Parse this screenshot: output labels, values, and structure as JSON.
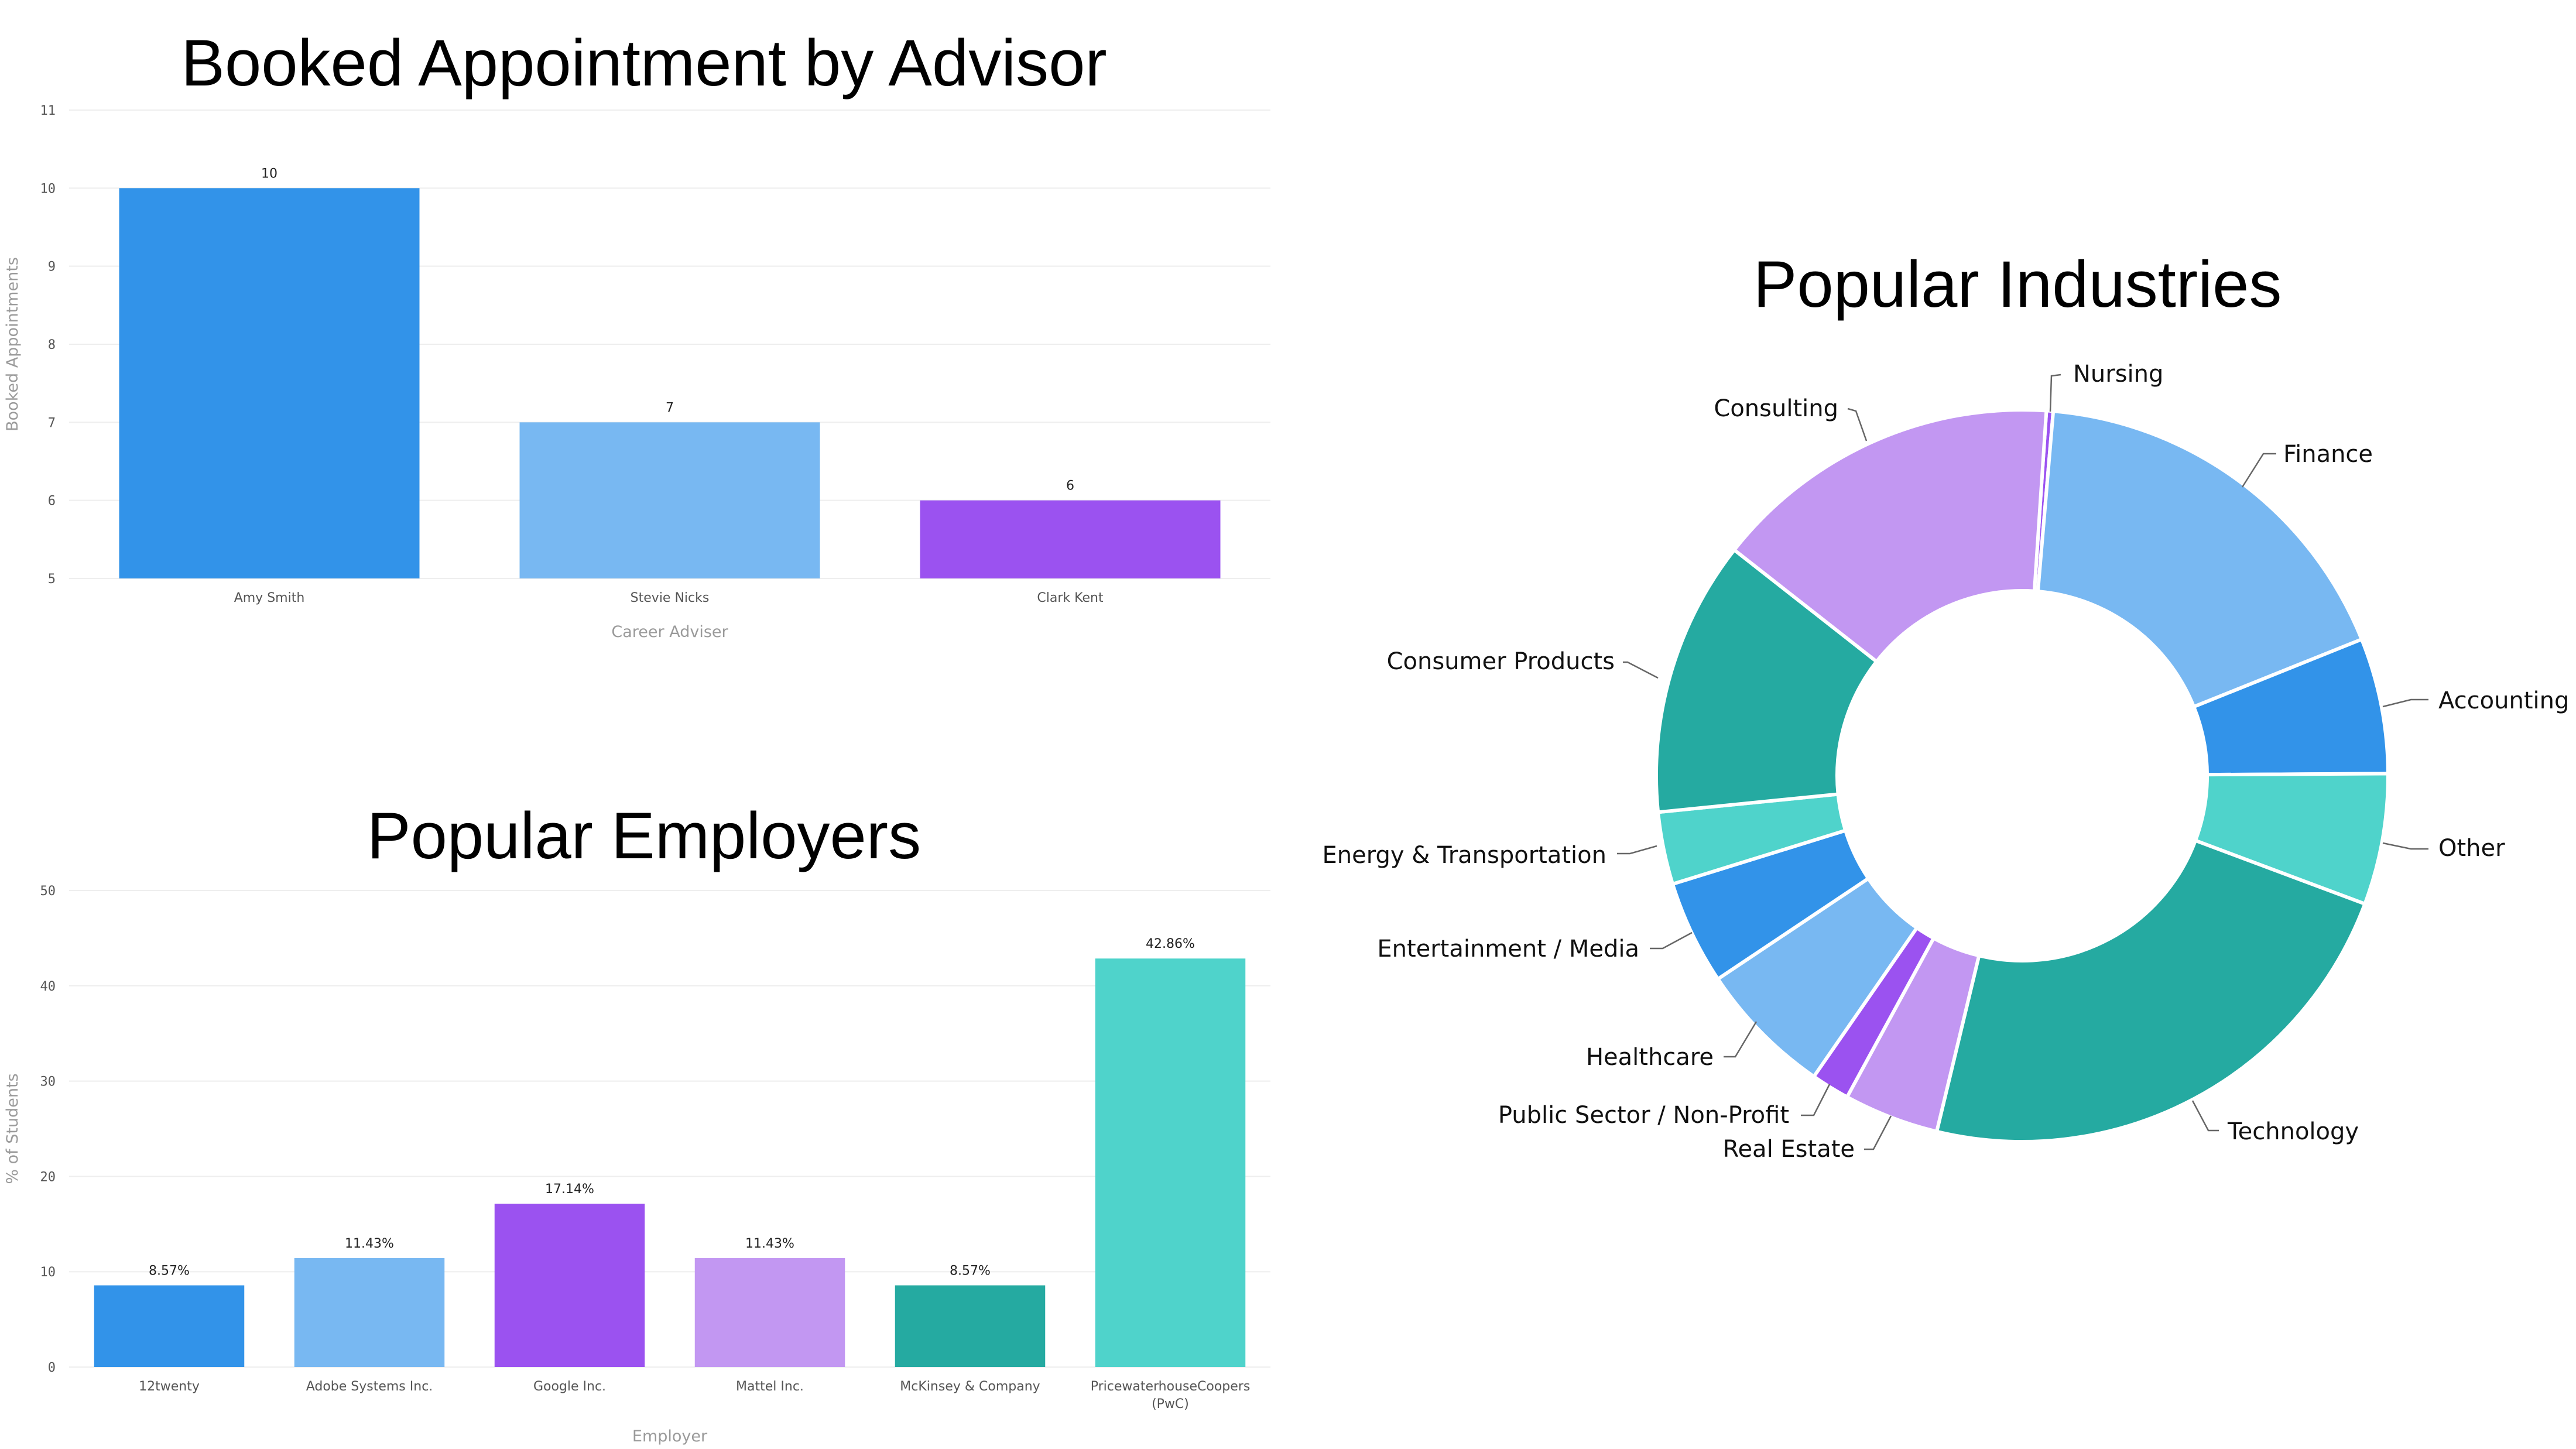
{
  "chart_data": [
    {
      "id": "advisor",
      "type": "bar",
      "title": "Booked Appointment by Advisor",
      "xlabel": "Career Adviser",
      "ylabel": "Booked Appointments",
      "ylim": [
        5,
        11
      ],
      "yticks": [
        5,
        6,
        7,
        8,
        9,
        10,
        11
      ],
      "grid": true,
      "categories": [
        "Amy Smith",
        "Stevie Nicks",
        "Clark Kent"
      ],
      "values": [
        10,
        7,
        6
      ],
      "data_labels": [
        "10",
        "7",
        "6"
      ],
      "colors": [
        "#3293E9",
        "#78B8F2",
        "#9B52F0"
      ]
    },
    {
      "id": "employers",
      "type": "bar",
      "title": "Popular Employers",
      "xlabel": "Employer",
      "ylabel": "% of Students",
      "ylim": [
        0,
        50
      ],
      "yticks": [
        0,
        10,
        20,
        30,
        40,
        50
      ],
      "grid": true,
      "categories": [
        "12twenty",
        "Adobe Systems Inc.",
        "Google Inc.",
        "Mattel Inc.",
        "McKinsey & Company",
        "PricewaterhouseCoopers (PwC)"
      ],
      "category_lines": [
        [
          "12twenty"
        ],
        [
          "Adobe Systems Inc."
        ],
        [
          "Google Inc."
        ],
        [
          "Mattel Inc."
        ],
        [
          "McKinsey & Company"
        ],
        [
          "PricewaterhouseCoopers",
          "(PwC)"
        ]
      ],
      "values": [
        8.57,
        11.43,
        17.14,
        11.43,
        8.57,
        42.86
      ],
      "data_labels": [
        "8.57%",
        "11.43%",
        "17.14%",
        "11.43%",
        "8.57%",
        "42.86%"
      ],
      "colors": [
        "#3293E9",
        "#78B8F2",
        "#9B52F0",
        "#C297F2",
        "#25AAA1",
        "#4FD3CB"
      ]
    },
    {
      "id": "industries",
      "type": "pie",
      "subtype": "donut",
      "title": "Popular Industries",
      "legend": "none (leader-line labels)",
      "categories": [
        "Nursing",
        "Finance",
        "Accounting",
        "Other",
        "Technology",
        "Real Estate",
        "Public Sector / Non-Profit",
        "Healthcare",
        "Entertainment / Media",
        "Energy & Transportation",
        "Consumer Products",
        "Consulting"
      ],
      "values": [
        0.3,
        17.6,
        6.0,
        5.8,
        23.1,
        4.2,
        1.7,
        6.0,
        4.6,
        3.2,
        12.2,
        15.5
      ],
      "unit": "% (estimated from slice angles)",
      "colors": [
        "#9B52F0",
        "#78B8F2",
        "#3293E9",
        "#4FD3CB",
        "#25AAA1",
        "#C297F2",
        "#9B52F0",
        "#78B8F2",
        "#3293E9",
        "#4FD3CB",
        "#25AAA1",
        "#C297F2"
      ]
    }
  ]
}
